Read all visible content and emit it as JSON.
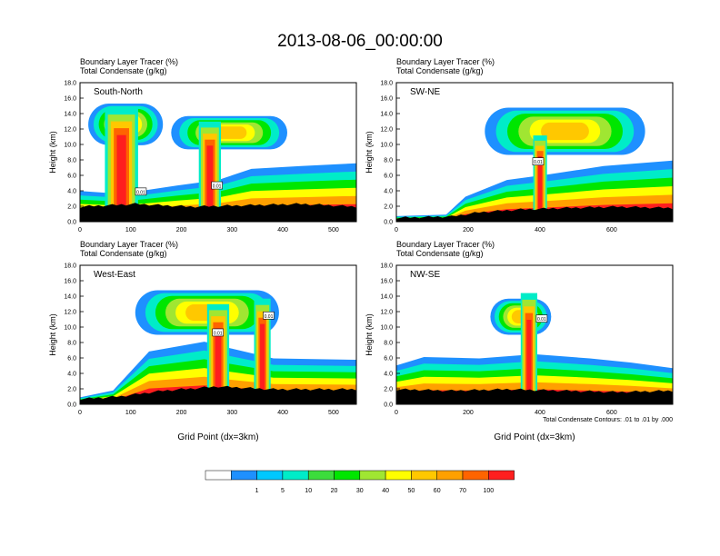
{
  "title": "2013-08-06_00:00:00",
  "legend": {
    "levels": [
      "1",
      "5",
      "10",
      "20",
      "30",
      "40",
      "50",
      "60",
      "70",
      "100"
    ],
    "colors": [
      "#ffffff",
      "#1e90ff",
      "#00c8ff",
      "#00ecc8",
      "#3cdc3c",
      "#00e600",
      "#a0e632",
      "#ffff00",
      "#ffc800",
      "#ffa000",
      "#ff6400",
      "#ff1e1e"
    ]
  },
  "contour_note": "Total Condensate Contours: .01 to .01 by .000",
  "chart_data": [
    {
      "type": "heatmap",
      "name": "South-North",
      "line1": "Boundary Layer Tracer   (%)",
      "line2": "Total Condensate   (g/kg)",
      "ylabel": "Height (km)",
      "xlabel": "",
      "xlim": [
        0,
        545
      ],
      "ylim": [
        0,
        18
      ],
      "xticks": [
        "0",
        "100",
        "200",
        "300",
        "400",
        "500"
      ],
      "xtick_values": [
        0,
        100,
        200,
        300,
        400,
        500
      ],
      "yticks": [
        "0.0",
        "2.0",
        "4.0",
        "6.0",
        "8.0",
        "10.0",
        "12.0",
        "14.0",
        "16.0",
        "18.0"
      ],
      "marker_x": 275,
      "contour_labels": [
        {
          "x": 120,
          "y": 3.9,
          "text": "0.01"
        },
        {
          "x": 270,
          "y": 4.7,
          "text": "0.01"
        }
      ]
    },
    {
      "type": "heatmap",
      "name": "SW-NE",
      "line1": "Boundary Layer Tracer   (%)",
      "line2": "Total Condensate   (g/kg)",
      "ylabel": "Height (km)",
      "xlabel": "",
      "xlim": [
        0,
        770
      ],
      "ylim": [
        0,
        18
      ],
      "xticks": [
        "0",
        "200",
        "400",
        "600"
      ],
      "xtick_values": [
        0,
        200,
        400,
        600
      ],
      "yticks": [
        "0.0",
        "2.0",
        "4.0",
        "6.0",
        "8.0",
        "10.0",
        "12.0",
        "14.0",
        "16.0",
        "18.0"
      ],
      "marker_x": 390,
      "contour_labels": [
        {
          "x": 395,
          "y": 7.8,
          "text": "0.01"
        }
      ]
    },
    {
      "type": "heatmap",
      "name": "West-East",
      "line1": "Boundary Layer Tracer   (%)",
      "line2": "Total Condensate   (g/kg)",
      "ylabel": "Height (km)",
      "xlabel": "Grid Point (dx=3km)",
      "xlim": [
        0,
        545
      ],
      "ylim": [
        0,
        18
      ],
      "xticks": [
        "0",
        "100",
        "200",
        "300",
        "400",
        "500"
      ],
      "xtick_values": [
        0,
        100,
        200,
        300,
        400,
        500
      ],
      "yticks": [
        "0.0",
        "2.0",
        "4.0",
        "6.0",
        "8.0",
        "10.0",
        "12.0",
        "14.0",
        "16.0",
        "18.0"
      ],
      "marker_x": 275,
      "contour_labels": [
        {
          "x": 272,
          "y": 9.3,
          "text": "0.01"
        },
        {
          "x": 372,
          "y": 11.5,
          "text": "0.01"
        }
      ]
    },
    {
      "type": "heatmap",
      "name": "NW-SE",
      "line1": "Boundary Layer Tracer   (%)",
      "line2": "Total Condensate   (g/kg)",
      "ylabel": "Height (km)",
      "xlabel": "Grid Point (dx=3km)",
      "xlim": [
        0,
        770
      ],
      "ylim": [
        0,
        18
      ],
      "xticks": [
        "0",
        "200",
        "400",
        "600"
      ],
      "xtick_values": [
        0,
        200,
        400,
        600
      ],
      "yticks": [
        "0.0",
        "2.0",
        "4.0",
        "6.0",
        "8.0",
        "10.0",
        "12.0",
        "14.0",
        "16.0",
        "18.0"
      ],
      "marker_x": 390,
      "contour_labels": [
        {
          "x": 405,
          "y": 11.1,
          "text": "0.01"
        }
      ]
    }
  ]
}
